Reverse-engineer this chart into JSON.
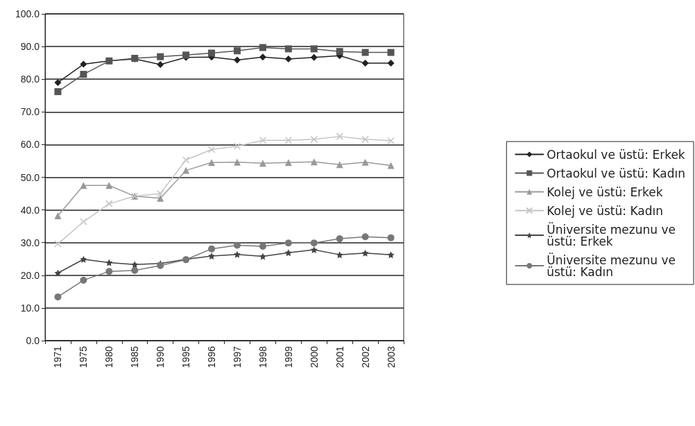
{
  "chart_data": {
    "type": "line",
    "categories": [
      "1971",
      "1975",
      "1980",
      "1985",
      "1990",
      "1995",
      "1996",
      "1997",
      "1998",
      "1999",
      "2000",
      "2001",
      "2002",
      "2003"
    ],
    "series": [
      {
        "name": "Ortaokul ve üstü: Erkek",
        "color": "#222222",
        "marker": "diamond",
        "values": [
          79.0,
          84.6,
          85.6,
          86.2,
          84.5,
          86.7,
          86.8,
          85.9,
          86.8,
          86.2,
          86.7,
          87.2,
          84.9,
          84.9
        ]
      },
      {
        "name": "Ortaokul ve üstü: Kadın",
        "color": "#555555",
        "marker": "square",
        "values": [
          76.2,
          81.5,
          85.6,
          86.4,
          86.9,
          87.4,
          88.0,
          88.7,
          89.7,
          89.3,
          89.3,
          88.5,
          88.2,
          88.2
        ]
      },
      {
        "name": "Kolej ve üstü: Erkek",
        "color": "#999999",
        "marker": "triangle",
        "values": [
          38.2,
          47.5,
          47.5,
          44.2,
          43.6,
          52.1,
          54.5,
          54.6,
          54.3,
          54.5,
          54.7,
          53.9,
          54.6,
          53.6
        ]
      },
      {
        "name": "Kolej ve üstü: Kadın",
        "color": "#c4c4c4",
        "marker": "cross",
        "values": [
          29.6,
          36.4,
          41.9,
          44.2,
          45.0,
          55.3,
          58.5,
          59.5,
          61.3,
          61.3,
          61.6,
          62.5,
          61.6,
          61.2
        ]
      },
      {
        "name": "Üniversite mezunu ve üstü: Erkek",
        "color": "#444444",
        "marker": "star",
        "values": [
          20.7,
          24.9,
          23.9,
          23.3,
          23.6,
          24.9,
          25.9,
          26.4,
          25.8,
          26.9,
          27.8,
          26.3,
          26.8,
          26.3
        ]
      },
      {
        "name": "Üniversite mezunu ve üstü: Kadın",
        "color": "#777777",
        "marker": "circle",
        "values": [
          13.4,
          18.5,
          21.2,
          21.5,
          23.0,
          24.8,
          28.1,
          29.2,
          28.9,
          29.9,
          29.9,
          31.2,
          31.8,
          31.5
        ]
      }
    ],
    "ylim": [
      0,
      100
    ],
    "yticks": [
      {
        "value": 0,
        "label": "0.0"
      },
      {
        "value": 10,
        "label": "10.0"
      },
      {
        "value": 20,
        "label": "20.0"
      },
      {
        "value": 30,
        "label": "30.0"
      },
      {
        "value": 40,
        "label": "40.0"
      },
      {
        "value": 50,
        "label": "50.0"
      },
      {
        "value": 60,
        "label": "60.0"
      },
      {
        "value": 70,
        "label": "70.0"
      },
      {
        "value": 80,
        "label": "80.0"
      },
      {
        "value": 90,
        "label": "90.0"
      },
      {
        "value": 100,
        "label": "100.0"
      }
    ],
    "grid": "y",
    "legend": "right",
    "line_style": "solid"
  }
}
